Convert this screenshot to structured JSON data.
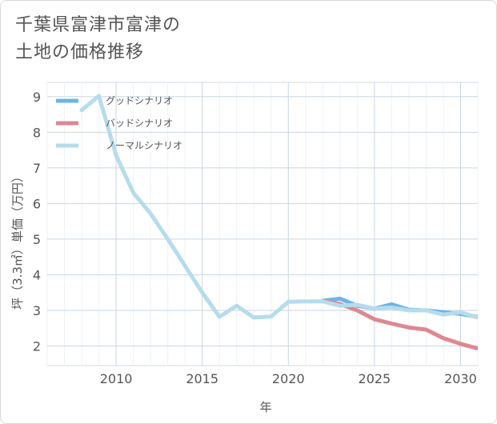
{
  "title": {
    "line1": "千葉県富津市富津の",
    "line2": "土地の価格推移"
  },
  "chart_data": {
    "type": "line",
    "title": "千葉県富津市富津の土地の価格推移",
    "xlabel": "年",
    "ylabel": "坪（3.3㎡）単価（万円）",
    "xlim": [
      2006,
      2031
    ],
    "ylim": [
      1.45,
      9.4
    ],
    "x_ticks": [
      2010,
      2015,
      2020,
      2025,
      2030
    ],
    "y_ticks": [
      2,
      3,
      4,
      5,
      6,
      7,
      8,
      9
    ],
    "grid": true,
    "legend_position": "top-left",
    "series": [
      {
        "name": "グッドシナリオ",
        "color": "#6cb4ea",
        "x": [
          2022,
          2023,
          2024,
          2025,
          2026,
          2027,
          2028,
          2029,
          2030,
          2031
        ],
        "y": [
          3.27,
          3.33,
          3.13,
          3.05,
          3.17,
          3.02,
          3.0,
          2.95,
          2.9,
          2.82
        ]
      },
      {
        "name": "バッドシナリオ",
        "color": "#dd8892",
        "x": [
          2022,
          2023,
          2024,
          2025,
          2026,
          2027,
          2028,
          2029,
          2030,
          2031
        ],
        "y": [
          3.27,
          3.18,
          3.0,
          2.75,
          2.63,
          2.52,
          2.46,
          2.22,
          2.06,
          1.93
        ]
      },
      {
        "name": "ノーマルシナリオ",
        "color": "#b6dcec",
        "x": [
          2008,
          2009,
          2010,
          2011,
          2012,
          2013,
          2014,
          2015,
          2016,
          2017,
          2018,
          2019,
          2020,
          2021,
          2022,
          2023,
          2024,
          2025,
          2026,
          2027,
          2028,
          2029,
          2030,
          2031
        ],
        "y": [
          8.62,
          9.02,
          7.35,
          6.3,
          5.72,
          5.0,
          4.25,
          3.5,
          2.82,
          3.13,
          2.8,
          2.83,
          3.24,
          3.25,
          3.25,
          3.13,
          3.16,
          3.05,
          3.08,
          3.0,
          3.0,
          2.88,
          2.95,
          2.8
        ]
      }
    ]
  }
}
